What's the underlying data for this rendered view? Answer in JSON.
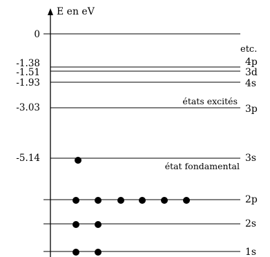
{
  "diagram": {
    "axis_label": "E en eV",
    "etc_label": "etc.",
    "excited_label": "états excités",
    "ground_label": "état fondamental",
    "levels": [
      {
        "name": "1s",
        "energy": null,
        "electrons": 2
      },
      {
        "name": "2s",
        "energy": null,
        "electrons": 2
      },
      {
        "name": "2p",
        "energy": null,
        "electrons": 6
      },
      {
        "name": "3s",
        "energy": "-5.14",
        "electrons": 1
      },
      {
        "name": "3p",
        "energy": "-3.03",
        "electrons": 0
      },
      {
        "name": "4s",
        "energy": "-1.93",
        "electrons": 0
      },
      {
        "name": "3d",
        "energy": "-1.51",
        "electrons": 0
      },
      {
        "name": "4p",
        "energy": "-1.38",
        "electrons": 0
      },
      {
        "name": "",
        "energy": "0",
        "electrons": 0
      }
    ]
  }
}
